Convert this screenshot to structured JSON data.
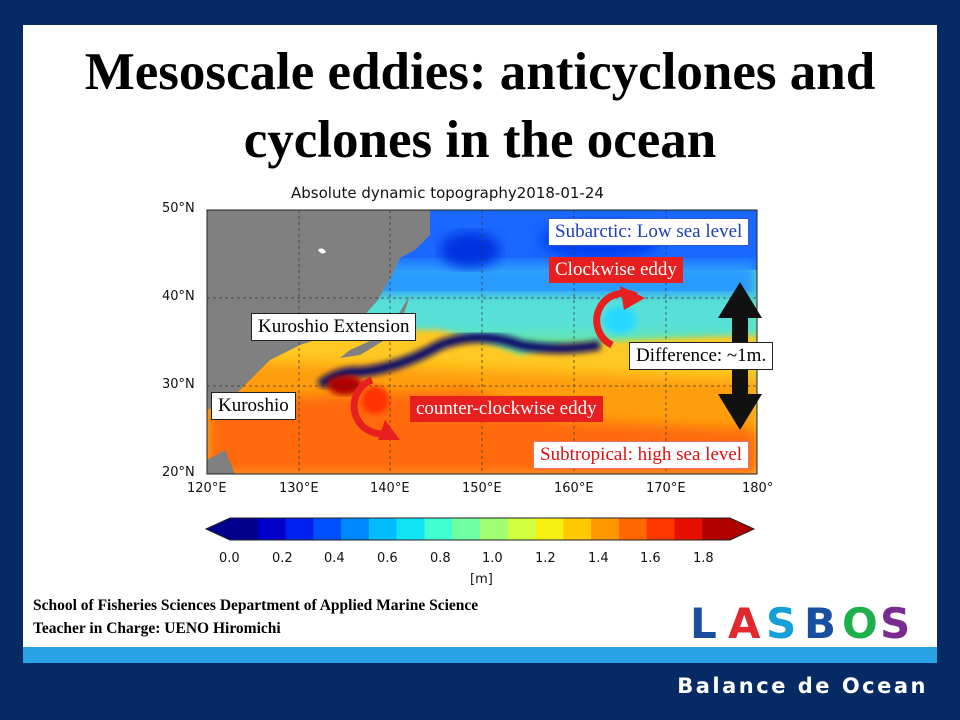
{
  "title_lines": [
    "Mesoscale eddies: anticyclones and",
    "cyclones in the ocean"
  ],
  "map": {
    "title": "Absolute dynamic topography2018-01-24",
    "lat_labels": [
      "50°N",
      "40°N",
      "30°N",
      "20°N"
    ],
    "lon_labels": [
      "120°E",
      "130°E",
      "140°E",
      "150°E",
      "160°E",
      "170°E",
      "180°"
    ],
    "colorbar_ticks": [
      "0.0",
      "0.2",
      "0.4",
      "0.6",
      "0.8",
      "1.0",
      "1.2",
      "1.4",
      "1.6",
      "1.8"
    ],
    "colorbar_unit": "[m]",
    "colorbar_colors": [
      "#00008c",
      "#0000c8",
      "#0020f0",
      "#0050ff",
      "#0088ff",
      "#00bcff",
      "#10e4f4",
      "#40ffd0",
      "#70ffa0",
      "#a0ff70",
      "#d0ff40",
      "#f4f010",
      "#ffc800",
      "#ff9800",
      "#ff6800",
      "#ff3800",
      "#e80e00",
      "#b00000"
    ]
  },
  "callouts": {
    "subarctic": "Subarctic: Low sea level",
    "clockwise": "Clockwise eddy",
    "kuroshio_ext": "Kuroshio Extension",
    "difference": "Difference: ~1m.",
    "kuroshio": "Kuroshio",
    "counter_clockwise": "counter-clockwise eddy",
    "subtropical": "Subtropical: high sea level"
  },
  "footer": {
    "line1": "School of Fisheries Sciences Department of Applied Marine Science",
    "line2": "Teacher in Charge: UENO Hiromichi"
  },
  "logo_text": "LASBOS",
  "logo_colors": [
    "#1a4fa0",
    "#e0282e",
    "#14a0d8",
    "#1a4fa0",
    "#1db14b",
    "#7a2b90"
  ],
  "tagline": "Balance de Ocean"
}
